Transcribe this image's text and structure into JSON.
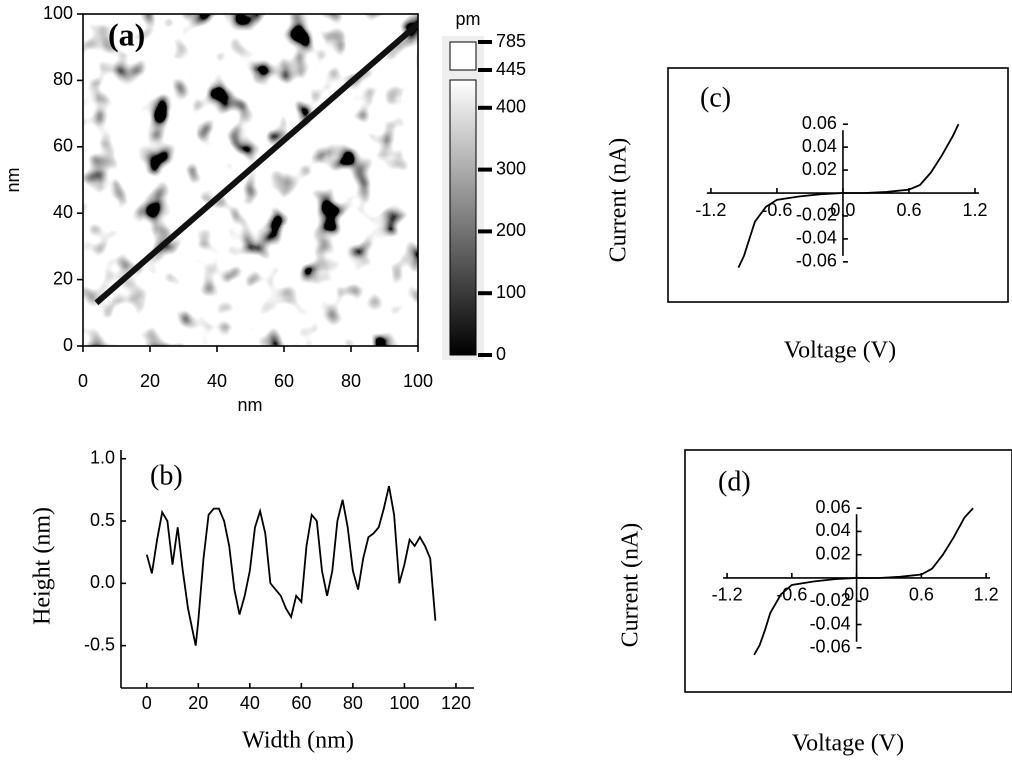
{
  "chart_data": [
    {
      "type": "heatmap",
      "label": "(a)",
      "xlabel": "nm",
      "ylabel": "nm",
      "xlim": [
        0,
        100
      ],
      "ylim": [
        0,
        100
      ],
      "xticks": [
        0,
        20,
        40,
        60,
        80,
        100
      ],
      "yticks": [
        0,
        20,
        40,
        60,
        80,
        100
      ],
      "colorbar": {
        "title": "pm",
        "lim": [
          0,
          445
        ],
        "ticks": [
          0,
          100,
          200,
          300,
          400
        ],
        "upper_lim": [
          445,
          785
        ],
        "upper_ticks": [
          445,
          785
        ]
      },
      "series": [
        {
          "color": "#111111",
          "x": [
            4,
            100
          ],
          "values": [
            13,
            97
          ]
        }
      ]
    },
    {
      "type": "line",
      "label": "(b)",
      "xlabel": "Width (nm)",
      "ylabel": "Height (nm)",
      "xlim": [
        -10,
        127
      ],
      "ylim": [
        -0.84,
        1.07
      ],
      "xticks": [
        0,
        20,
        40,
        60,
        80,
        100,
        120
      ],
      "yticks": [
        -0.5,
        {
          "value": 0,
          "label": "0.0"
        },
        0.5,
        {
          "value": 1,
          "label": "1.0"
        }
      ],
      "color": "#000000",
      "x": [
        0,
        2,
        4,
        6,
        8,
        10,
        12,
        14,
        16,
        18,
        19,
        20,
        22,
        24,
        26,
        28,
        30,
        32,
        34,
        36,
        38,
        40,
        42,
        44,
        46,
        48,
        50,
        52,
        54,
        56,
        58,
        60,
        62,
        64,
        66,
        68,
        70,
        72,
        74,
        76,
        78,
        80,
        82,
        84,
        86,
        88,
        90,
        92,
        94,
        96,
        98,
        100,
        102,
        104,
        106,
        108,
        110,
        112
      ],
      "values": [
        0.23,
        0.08,
        0.35,
        0.57,
        0.5,
        0.15,
        0.45,
        0.1,
        -0.2,
        -0.4,
        -0.5,
        -0.3,
        0.2,
        0.55,
        0.6,
        0.6,
        0.5,
        0.3,
        -0.05,
        -0.25,
        -0.1,
        0.1,
        0.45,
        0.58,
        0.4,
        0.0,
        -0.05,
        -0.1,
        -0.2,
        -0.27,
        -0.1,
        -0.15,
        0.3,
        0.55,
        0.5,
        0.1,
        -0.1,
        0.1,
        0.5,
        0.67,
        0.45,
        0.1,
        -0.05,
        0.2,
        0.37,
        0.4,
        0.45,
        0.6,
        0.78,
        0.55,
        0.0,
        0.15,
        0.35,
        0.3,
        0.37,
        0.3,
        0.2,
        -0.3
      ]
    },
    {
      "type": "line",
      "label": "(c)",
      "xlabel": "Voltage (V)",
      "ylabel": "Current (nA)",
      "axes_at_origin": true,
      "frame": true,
      "xlim": [
        -1.59,
        1.5
      ],
      "ylim": [
        -0.095,
        0.109
      ],
      "xticks": [
        -1.2,
        -0.6,
        {
          "value": 0,
          "label": "0.0"
        },
        0.6,
        1.2
      ],
      "yticks": [
        -0.06,
        -0.04,
        -0.02,
        0.02,
        0.04,
        0.06
      ],
      "color": "#000000",
      "x": [
        -0.95,
        -0.9,
        -0.85,
        -0.8,
        -0.7,
        -0.6,
        -0.4,
        -0.2,
        0,
        0.2,
        0.4,
        0.6,
        0.7,
        0.8,
        0.9,
        1.0,
        1.05
      ],
      "values": [
        -0.065,
        -0.055,
        -0.04,
        -0.025,
        -0.012,
        -0.006,
        -0.003,
        -0.001,
        0,
        0,
        0.001,
        0.003,
        0.007,
        0.018,
        0.033,
        0.05,
        0.06
      ]
    },
    {
      "type": "line",
      "label": "(d)",
      "xlabel": "Voltage (V)",
      "ylabel": "Current (nA)",
      "axes_at_origin": true,
      "frame": true,
      "xlim": [
        -1.59,
        1.44
      ],
      "ylim": [
        -0.098,
        0.11
      ],
      "xticks": [
        -1.2,
        -0.6,
        {
          "value": 0,
          "label": "0.0"
        },
        0.6,
        1.2
      ],
      "yticks": [
        -0.06,
        -0.04,
        -0.02,
        0.02,
        0.04,
        0.06
      ],
      "color": "#000000",
      "x": [
        -0.95,
        -0.9,
        -0.85,
        -0.8,
        -0.7,
        -0.6,
        -0.4,
        -0.2,
        0,
        0.2,
        0.4,
        0.6,
        0.7,
        0.8,
        0.9,
        1.0,
        1.08
      ],
      "values": [
        -0.066,
        -0.058,
        -0.045,
        -0.03,
        -0.014,
        -0.006,
        -0.003,
        -0.001,
        0,
        0,
        0.001,
        0.003,
        0.008,
        0.02,
        0.035,
        0.052,
        0.06
      ]
    }
  ]
}
